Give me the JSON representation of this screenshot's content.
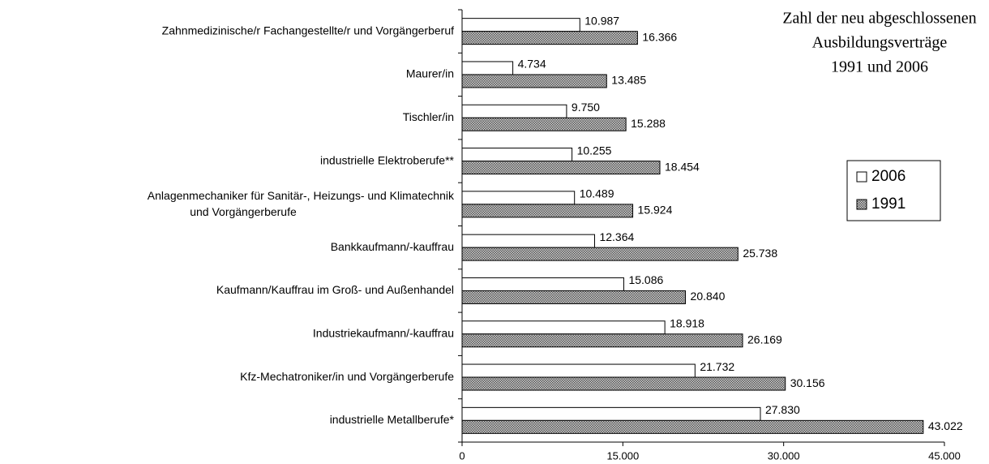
{
  "chart_data": {
    "type": "bar",
    "orientation": "horizontal",
    "title": [
      "Zahl der neu abgeschlossenen",
      "Ausbildungsverträge",
      "1991 und 2006"
    ],
    "categories": [
      "Zahnmedizinische/r Fachangestellte/r und Vorgängerberuf",
      "Maurer/in",
      "Tischler/in",
      "industrielle Elektroberufe**",
      "Anlagenmechaniker für Sanitär-, Heizungs- und Klimatechnik und Vorgängerberufe",
      "Bankkaufmann/-kauffrau",
      "Kaufmann/Kauffrau im Groß- und Außenhandel",
      "Industriekaufmann/-kauffrau",
      "Kfz-Mechatroniker/in und Vorgängerberufe",
      "industrielle Metallberufe*"
    ],
    "series": [
      {
        "name": "2006",
        "color": "#ffffff",
        "values": [
          10987,
          4734,
          9750,
          10255,
          10489,
          12364,
          15086,
          18918,
          21732,
          27830
        ],
        "value_labels": [
          "10.987",
          "4.734",
          "9.750",
          "10.255",
          "10.489",
          "12.364",
          "15.086",
          "18.918",
          "21.732",
          "27.830"
        ]
      },
      {
        "name": "1991",
        "color": "#808080",
        "pattern": true,
        "values": [
          16366,
          13485,
          15288,
          18454,
          15924,
          25738,
          20840,
          26169,
          30156,
          43022
        ],
        "value_labels": [
          "16.366",
          "13.485",
          "15.288",
          "18.454",
          "15.924",
          "25.738",
          "20.840",
          "26.169",
          "30.156",
          "43.022"
        ]
      }
    ],
    "xlim": [
      0,
      45000
    ],
    "xticks": [
      0,
      {
        "value": 15000,
        "label": "15.000"
      },
      {
        "value": 30000,
        "label": "30.000"
      },
      {
        "value": 45000,
        "label": "45.000"
      }
    ],
    "legend": "right"
  }
}
